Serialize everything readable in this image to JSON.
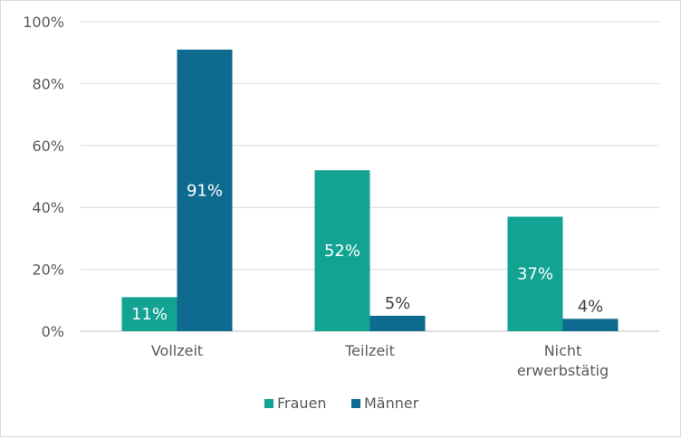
{
  "chart_data": {
    "type": "bar",
    "categories": [
      "Vollzeit",
      "Teilzeit",
      "Nicht erwerbstätig"
    ],
    "category_lines": [
      [
        "Vollzeit"
      ],
      [
        "Teilzeit"
      ],
      [
        "Nicht",
        "erwerbstätig"
      ]
    ],
    "series": [
      {
        "name": "Frauen",
        "values": [
          11,
          52,
          37
        ],
        "labels": [
          "11%",
          "52%",
          "37%"
        ],
        "color": "#12a393"
      },
      {
        "name": "Männer",
        "values": [
          91,
          5,
          4
        ],
        "labels": [
          "91%",
          "5%",
          "4%"
        ],
        "color": "#0e6a8f"
      }
    ],
    "yticks": [
      "0%",
      "20%",
      "40%",
      "60%",
      "80%",
      "100%"
    ],
    "ylim": [
      0,
      100
    ],
    "grid": true,
    "legend": "bottom-center",
    "title": "",
    "xlabel": "",
    "ylabel": ""
  }
}
